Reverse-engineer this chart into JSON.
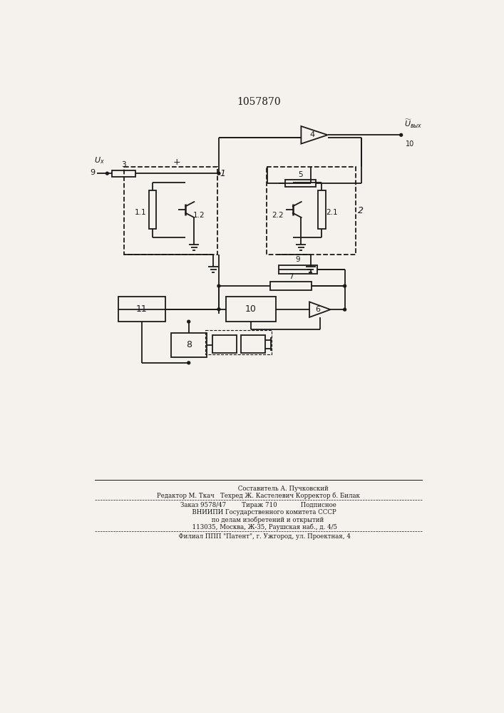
{
  "title": "1057870",
  "bg_color": "#f5f2ed",
  "line_color": "#1a1a1a",
  "footer_line1": "                         Составитель А. Пучковский",
  "footer_line2": "Редактор М. Ткач   Техред Ж. Кастелевич Корректор б. Билак",
  "footer_line3": "Заказ 9578/47        Тираж 710            Подписное",
  "footer_line4": "      ВНИИПИ Государственного комитета СССР",
  "footer_line5": "         по делам изобретений и открытий",
  "footer_line6": "      113035, Москва, Ж-35, Раушская наб., д. 4/5",
  "footer_line7": "      Филиал ППП \"Патент\", г. Ужгород, ул. Проектная, 4"
}
